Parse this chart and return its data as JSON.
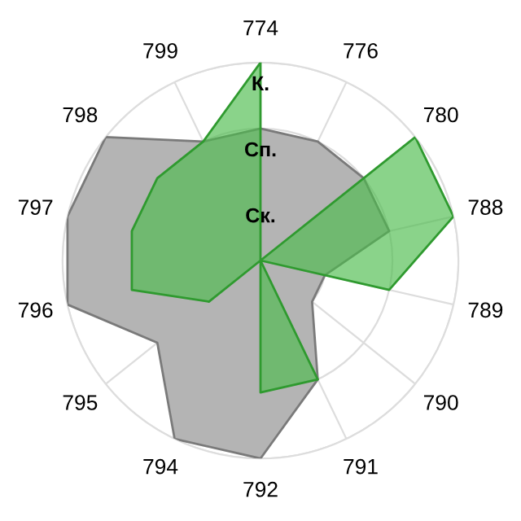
{
  "chart_data": {
    "type": "radar",
    "categories": [
      "774",
      "776",
      "780",
      "788",
      "789",
      "790",
      "791",
      "792",
      "794",
      "795",
      "796",
      "797",
      "798",
      "799"
    ],
    "series": [
      {
        "color": "#b4b4b4",
        "values": [
          2,
          2,
          2,
          2,
          1,
          1,
          2,
          3,
          3,
          2,
          3,
          3,
          3,
          2
        ]
      },
      {
        "color": "#4cbb4c",
        "values": [
          3,
          0,
          3,
          3,
          2,
          0,
          2,
          2,
          0,
          1,
          2,
          2,
          2,
          2
        ]
      }
    ],
    "ylim": [
      0,
      3
    ],
    "yticks": [
      {
        "value": 1,
        "label": "Ск."
      },
      {
        "value": 2,
        "label": "Сп."
      },
      {
        "value": 3,
        "label": "К."
      }
    ],
    "grid": true,
    "legend": false
  }
}
